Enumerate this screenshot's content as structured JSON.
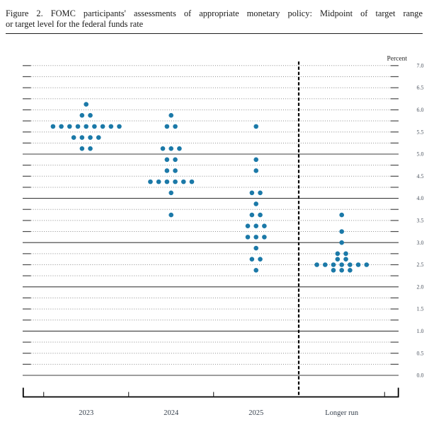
{
  "figure": {
    "title_line1": "Figure 2. FOMC participants' assessments of appropriate monetary policy: Midpoint of target range",
    "title_line2": "or target level for the federal funds rate"
  },
  "chart_data": {
    "type": "scatter",
    "title": "FOMC participants' assessments of appropriate monetary policy: Midpoint of target range or target level for the federal funds rate",
    "ylabel": "Percent",
    "xlabel": "",
    "categories": [
      "2023",
      "2024",
      "2025",
      "Longer run"
    ],
    "ylim": [
      0.0,
      7.0
    ],
    "y_minor_step": 0.25,
    "y_label_step": 0.5,
    "y_tick_labels": [
      "7.0",
      "6.5",
      "6.0",
      "5.5",
      "5.0",
      "4.5",
      "4.0",
      "3.5",
      "3.0",
      "2.5",
      "2.0",
      "1.5",
      "1.0",
      "0.5",
      "0.0"
    ],
    "grid": "dotted every 0.25 percent, solid at integer percents 0-5",
    "solid_gridlines": [
      0,
      1,
      2,
      3,
      4,
      5
    ],
    "legend_position": "none",
    "separator_before_category": "Longer run",
    "dot_color": "#1b79a8",
    "series": [
      {
        "name": "2023",
        "dots": [
          {
            "rate": 6.125,
            "count": 1
          },
          {
            "rate": 5.875,
            "count": 2
          },
          {
            "rate": 5.625,
            "count": 9
          },
          {
            "rate": 5.375,
            "count": 4
          },
          {
            "rate": 5.125,
            "count": 2
          }
        ]
      },
      {
        "name": "2024",
        "dots": [
          {
            "rate": 5.875,
            "count": 1
          },
          {
            "rate": 5.625,
            "count": 2
          },
          {
            "rate": 5.125,
            "count": 3
          },
          {
            "rate": 4.875,
            "count": 2
          },
          {
            "rate": 4.625,
            "count": 2
          },
          {
            "rate": 4.375,
            "count": 6
          },
          {
            "rate": 4.125,
            "count": 1
          },
          {
            "rate": 3.625,
            "count": 1
          }
        ]
      },
      {
        "name": "2025",
        "dots": [
          {
            "rate": 5.625,
            "count": 1
          },
          {
            "rate": 4.875,
            "count": 1
          },
          {
            "rate": 4.625,
            "count": 1
          },
          {
            "rate": 4.125,
            "count": 2
          },
          {
            "rate": 3.875,
            "count": 1
          },
          {
            "rate": 3.625,
            "count": 2
          },
          {
            "rate": 3.375,
            "count": 3
          },
          {
            "rate": 3.125,
            "count": 3
          },
          {
            "rate": 2.875,
            "count": 1
          },
          {
            "rate": 2.625,
            "count": 2
          },
          {
            "rate": 2.375,
            "count": 1
          }
        ]
      },
      {
        "name": "Longer run",
        "dots": [
          {
            "rate": 3.625,
            "count": 1
          },
          {
            "rate": 3.25,
            "count": 1
          },
          {
            "rate": 3.0,
            "count": 1
          },
          {
            "rate": 2.75,
            "count": 2
          },
          {
            "rate": 2.625,
            "count": 2
          },
          {
            "rate": 2.5,
            "count": 7
          },
          {
            "rate": 2.375,
            "count": 3
          }
        ]
      }
    ]
  }
}
